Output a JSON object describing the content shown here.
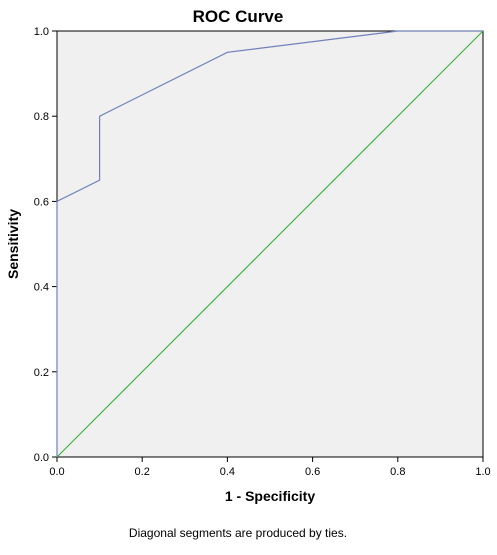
{
  "chart_data": {
    "type": "line",
    "title": "ROC Curve",
    "xlabel": "1 - Specificity",
    "ylabel": "Sensitivity",
    "xlim": [
      0,
      1
    ],
    "ylim": [
      0,
      1
    ],
    "xticks": [
      "0.0",
      "0.2",
      "0.4",
      "0.6",
      "0.8",
      "1.0"
    ],
    "yticks": [
      "0.0",
      "0.2",
      "0.4",
      "0.6",
      "0.8",
      "1.0"
    ],
    "grid": false,
    "series": [
      {
        "color": "#7080b8",
        "x": [
          0.0,
          0.0,
          0.1,
          0.1,
          0.4,
          0.8,
          1.0
        ],
        "y": [
          0.0,
          0.6,
          0.65,
          0.8,
          0.95,
          1.0,
          1.0
        ]
      },
      {
        "color": "#44b244",
        "x": [
          0.0,
          1.0
        ],
        "y": [
          0.0,
          1.0
        ]
      }
    ],
    "plot_background": "#f0f0f0",
    "note": "Diagonal segments are produced by ties."
  }
}
